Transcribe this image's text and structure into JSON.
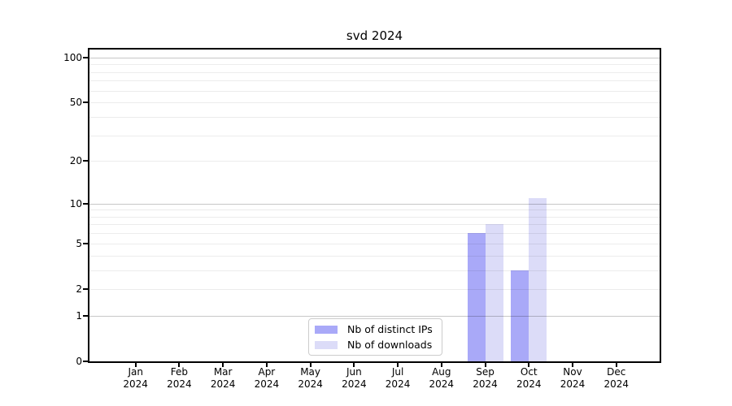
{
  "chart_data": {
    "type": "bar",
    "title": "svd 2024",
    "categories": [
      "Jan 2024",
      "Feb 2024",
      "Mar 2024",
      "Apr 2024",
      "May 2024",
      "Jun 2024",
      "Jul 2024",
      "Aug 2024",
      "Sep 2024",
      "Oct 2024",
      "Nov 2024",
      "Dec 2024"
    ],
    "series": [
      {
        "name": "Nb of distinct IPs",
        "color": "#a9a9f8",
        "values": [
          0,
          0,
          0,
          0,
          0,
          0,
          0,
          0,
          6,
          3,
          0,
          0
        ]
      },
      {
        "name": "Nb of downloads",
        "color": "#dcdcf8",
        "values": [
          0,
          0,
          0,
          0,
          0,
          0,
          0,
          0,
          7,
          11,
          0,
          0
        ]
      }
    ],
    "yscale": "log1p",
    "ylim": [
      0,
      113
    ],
    "yticks": [
      0,
      1,
      2,
      5,
      10,
      20,
      50,
      100
    ],
    "grid": {
      "major": [
        1,
        10,
        100
      ],
      "minor": [
        2,
        3,
        4,
        5,
        6,
        7,
        8,
        9,
        20,
        30,
        40,
        50,
        60,
        70,
        80,
        90
      ]
    },
    "legend_position": "lower center inside",
    "background_color": "#ffffff",
    "axis_color": "#000000"
  }
}
